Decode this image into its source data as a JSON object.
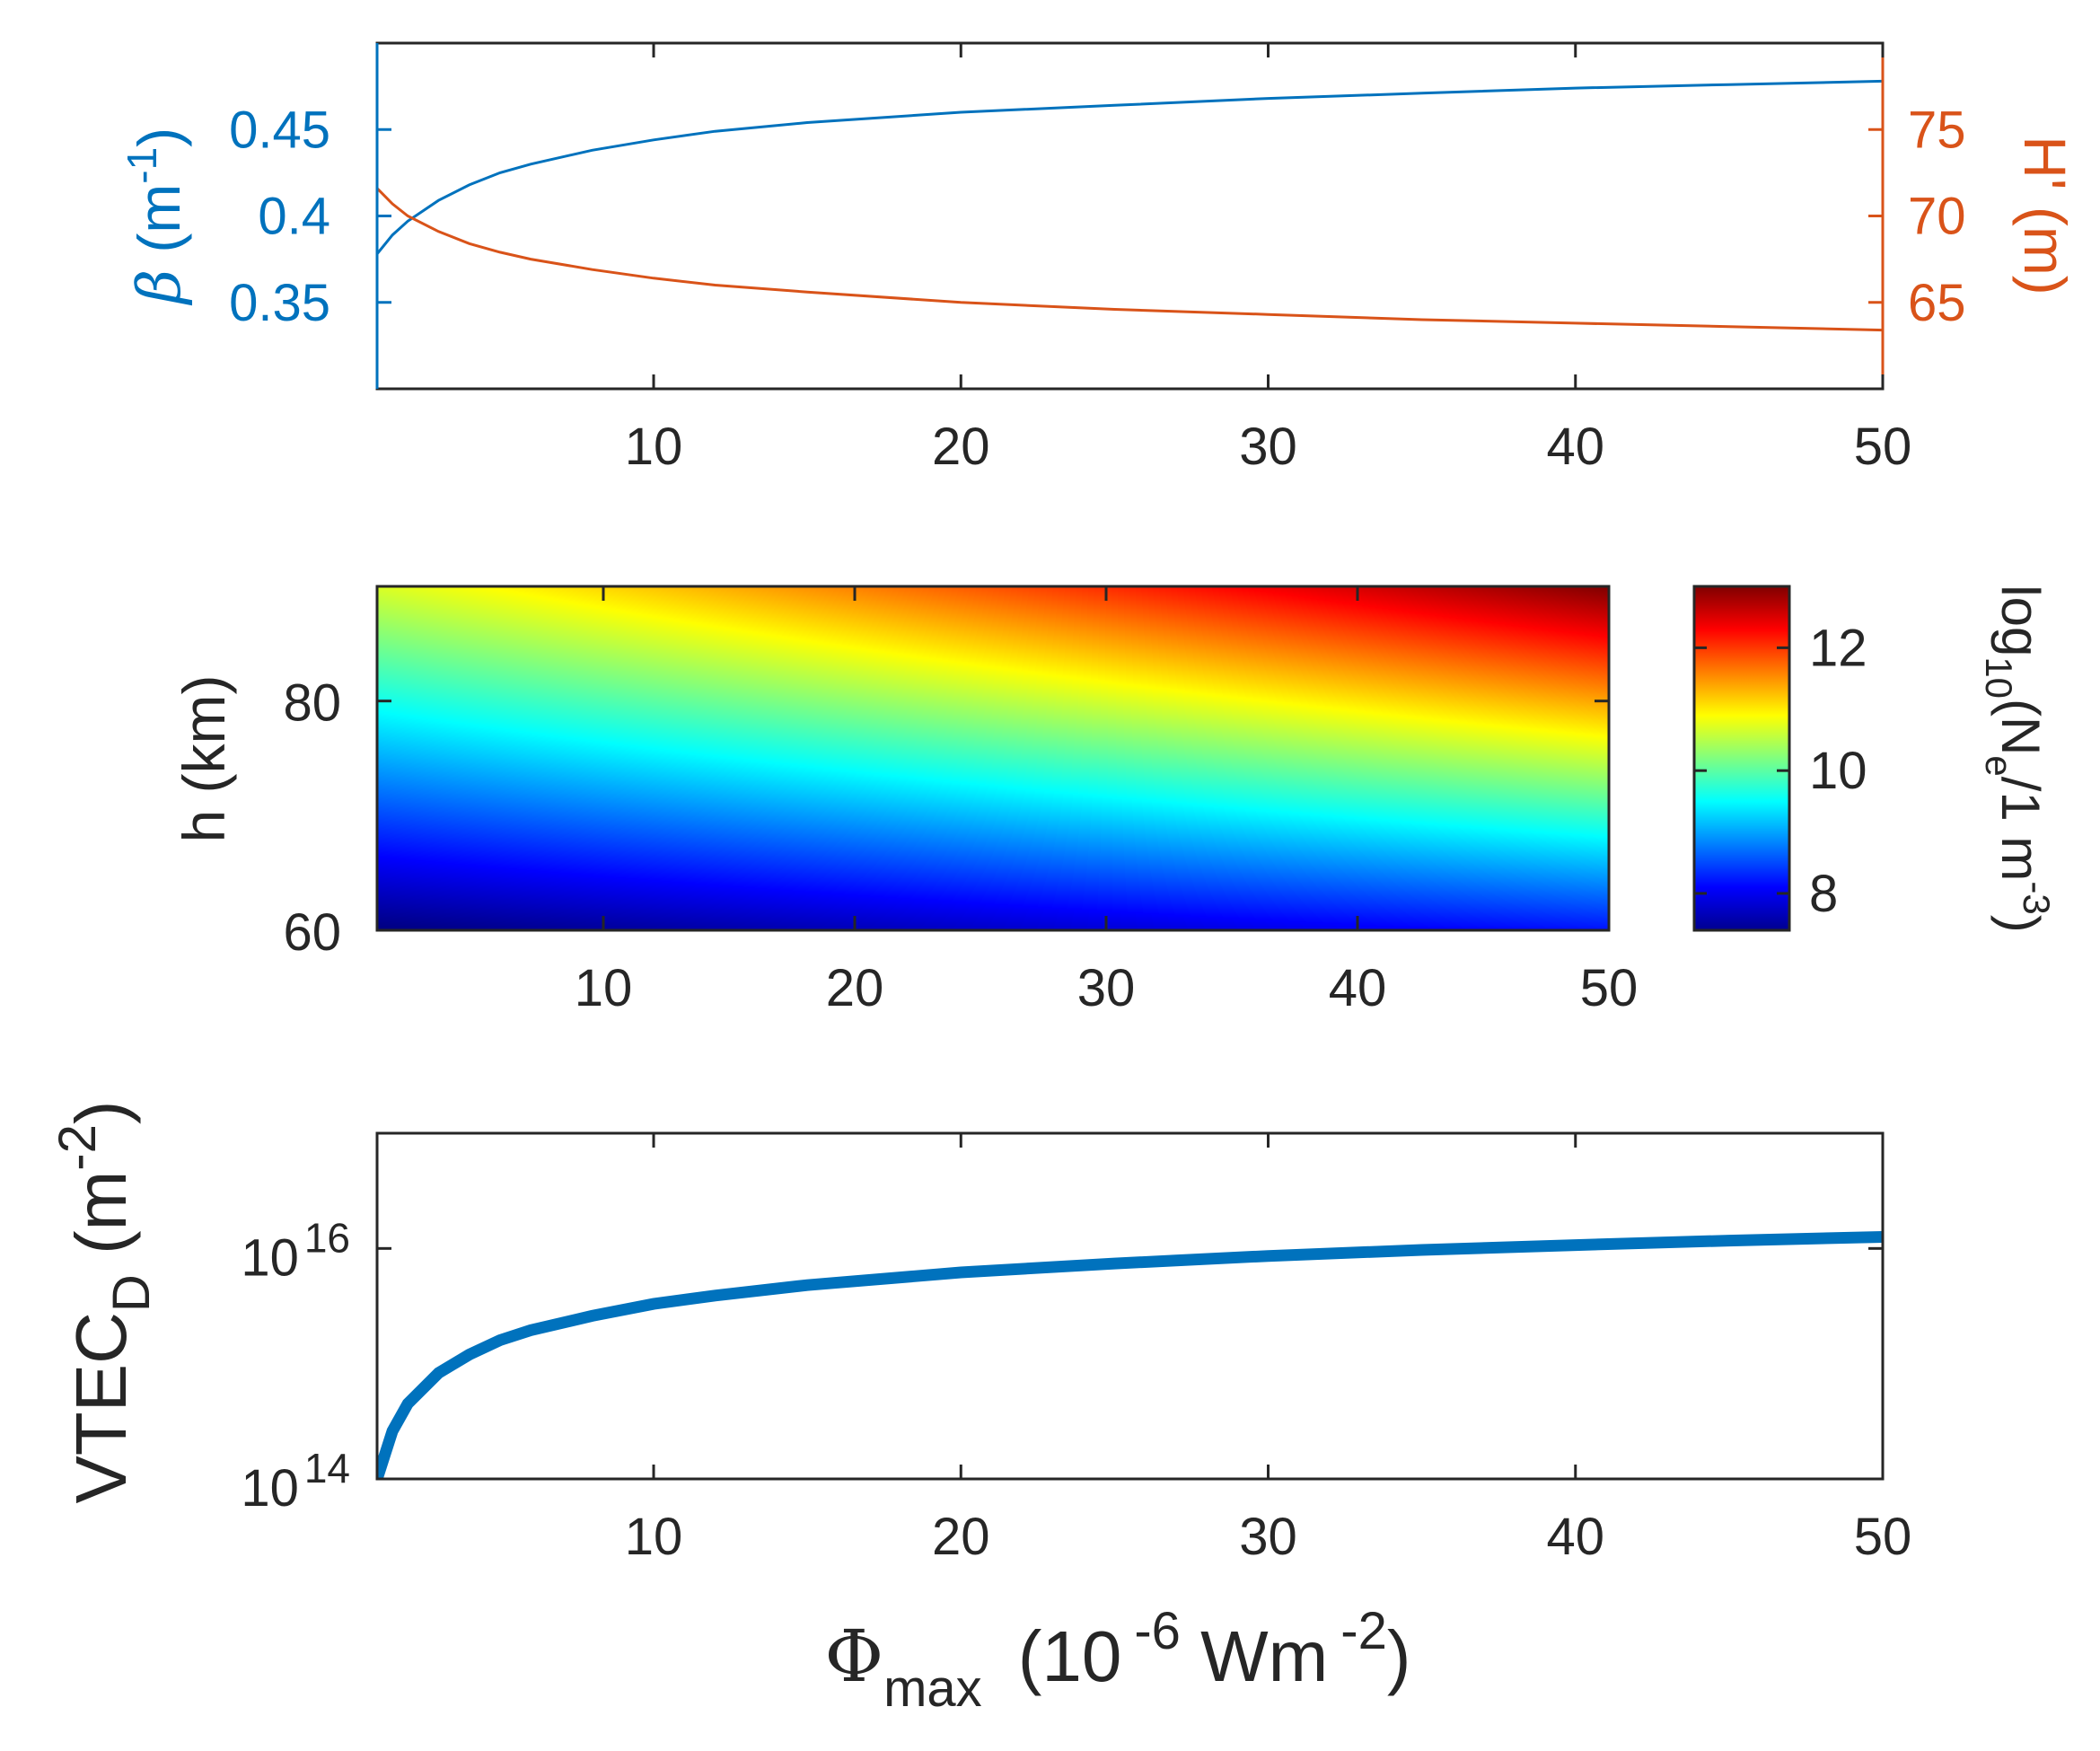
{
  "colors": {
    "left_axis": "#0072bd",
    "right_axis": "#d95319",
    "axis": "#262626",
    "vtec_line": "#0072bd"
  },
  "chart_data": [
    {
      "id": "top",
      "type": "line",
      "xlim": [
        1,
        50
      ],
      "x_ticks": [
        "10",
        "20",
        "30",
        "40",
        "50"
      ],
      "left_axis": {
        "label_symbol": "β",
        "label_text": " (m",
        "label_sup": "-1",
        "label_close": ")",
        "ylim": [
          0.3,
          0.5
        ],
        "ticks": [
          "0.35",
          "0.4",
          "0.45"
        ]
      },
      "right_axis": {
        "label_text": "H' (m)",
        "ylim": [
          60,
          80
        ],
        "ticks": [
          "65",
          "70",
          "75"
        ]
      },
      "series": [
        {
          "name": "β",
          "axis": "left",
          "x": [
            1,
            1.5,
            2,
            3,
            4,
            5,
            6,
            8,
            10,
            12,
            15,
            20,
            25,
            30,
            35,
            40,
            45,
            50
          ],
          "values": [
            0.378,
            0.389,
            0.397,
            0.409,
            0.418,
            0.425,
            0.43,
            0.438,
            0.444,
            0.449,
            0.454,
            0.46,
            0.464,
            0.468,
            0.471,
            0.474,
            0.476,
            0.478
          ]
        },
        {
          "name": "H'",
          "axis": "right",
          "x": [
            1,
            1.5,
            2,
            3,
            4,
            5,
            6,
            8,
            10,
            12,
            15,
            20,
            25,
            30,
            35,
            40,
            45,
            50
          ],
          "values": [
            71.6,
            70.7,
            70.0,
            69.1,
            68.4,
            67.9,
            67.5,
            66.9,
            66.4,
            66.0,
            65.6,
            65.0,
            64.6,
            64.3,
            64.0,
            63.8,
            63.6,
            63.4
          ]
        }
      ]
    },
    {
      "id": "middle",
      "type": "heatmap",
      "xlim": [
        1,
        50
      ],
      "ylim": [
        60,
        90
      ],
      "x_ticks": [
        "10",
        "20",
        "30",
        "40",
        "50"
      ],
      "y_ticks": [
        "60",
        "80"
      ],
      "ylabel": "h (km)",
      "colorbar": {
        "range": [
          7.4,
          13.0
        ],
        "ticks": [
          "8",
          "10",
          "12"
        ],
        "label_text": "log",
        "label_sub": "10",
        "label_mid": "(N",
        "label_sub2": "e",
        "label_mid2": "/1 m",
        "label_sup": "-3",
        "label_close": ")"
      },
      "corner_values": {
        "x1_h60": 7.4,
        "x50_h60": 8.2,
        "x1_h90": 10.7,
        "x50_h90": 13.0
      }
    },
    {
      "id": "bottom",
      "type": "line",
      "scale": "log",
      "xlim": [
        1,
        50
      ],
      "ylim": [
        100000000000000.0,
        1e+17
      ],
      "x_ticks": [
        "10",
        "20",
        "30",
        "40",
        "50"
      ],
      "y_ticks": [
        {
          "base": "10",
          "exp": "14"
        },
        {
          "base": "10",
          "exp": "16"
        }
      ],
      "ylabel": {
        "main": "VTEC",
        "sub": "D",
        "unit": " (m",
        "sup": "-2",
        "close": ")"
      },
      "xlabel": {
        "symbol": "Φ",
        "sub": "max",
        "unit": "(10",
        "sup1": "-6",
        "mid": " Wm",
        "sup2": "-2",
        "close": ")"
      },
      "series": [
        {
          "name": "VTEC_D",
          "x": [
            1,
            1.5,
            2,
            3,
            4,
            5,
            6,
            8,
            10,
            12,
            15,
            20,
            25,
            30,
            35,
            40,
            45,
            50
          ],
          "values": [
            100000000000000.0,
            260000000000000.0,
            450000000000000.0,
            830000000000000.0,
            1200000000000000.0,
            1600000000000000.0,
            1950000000000000.0,
            2600000000000000.0,
            3300000000000000.0,
            3900000000000000.0,
            4800000000000000.0,
            6200000000000000.0,
            7400000000000000.0,
            8600000000000000.0,
            9700000000000000.0,
            1.07e+16,
            1.17e+16,
            1.26e+16
          ]
        }
      ]
    }
  ]
}
